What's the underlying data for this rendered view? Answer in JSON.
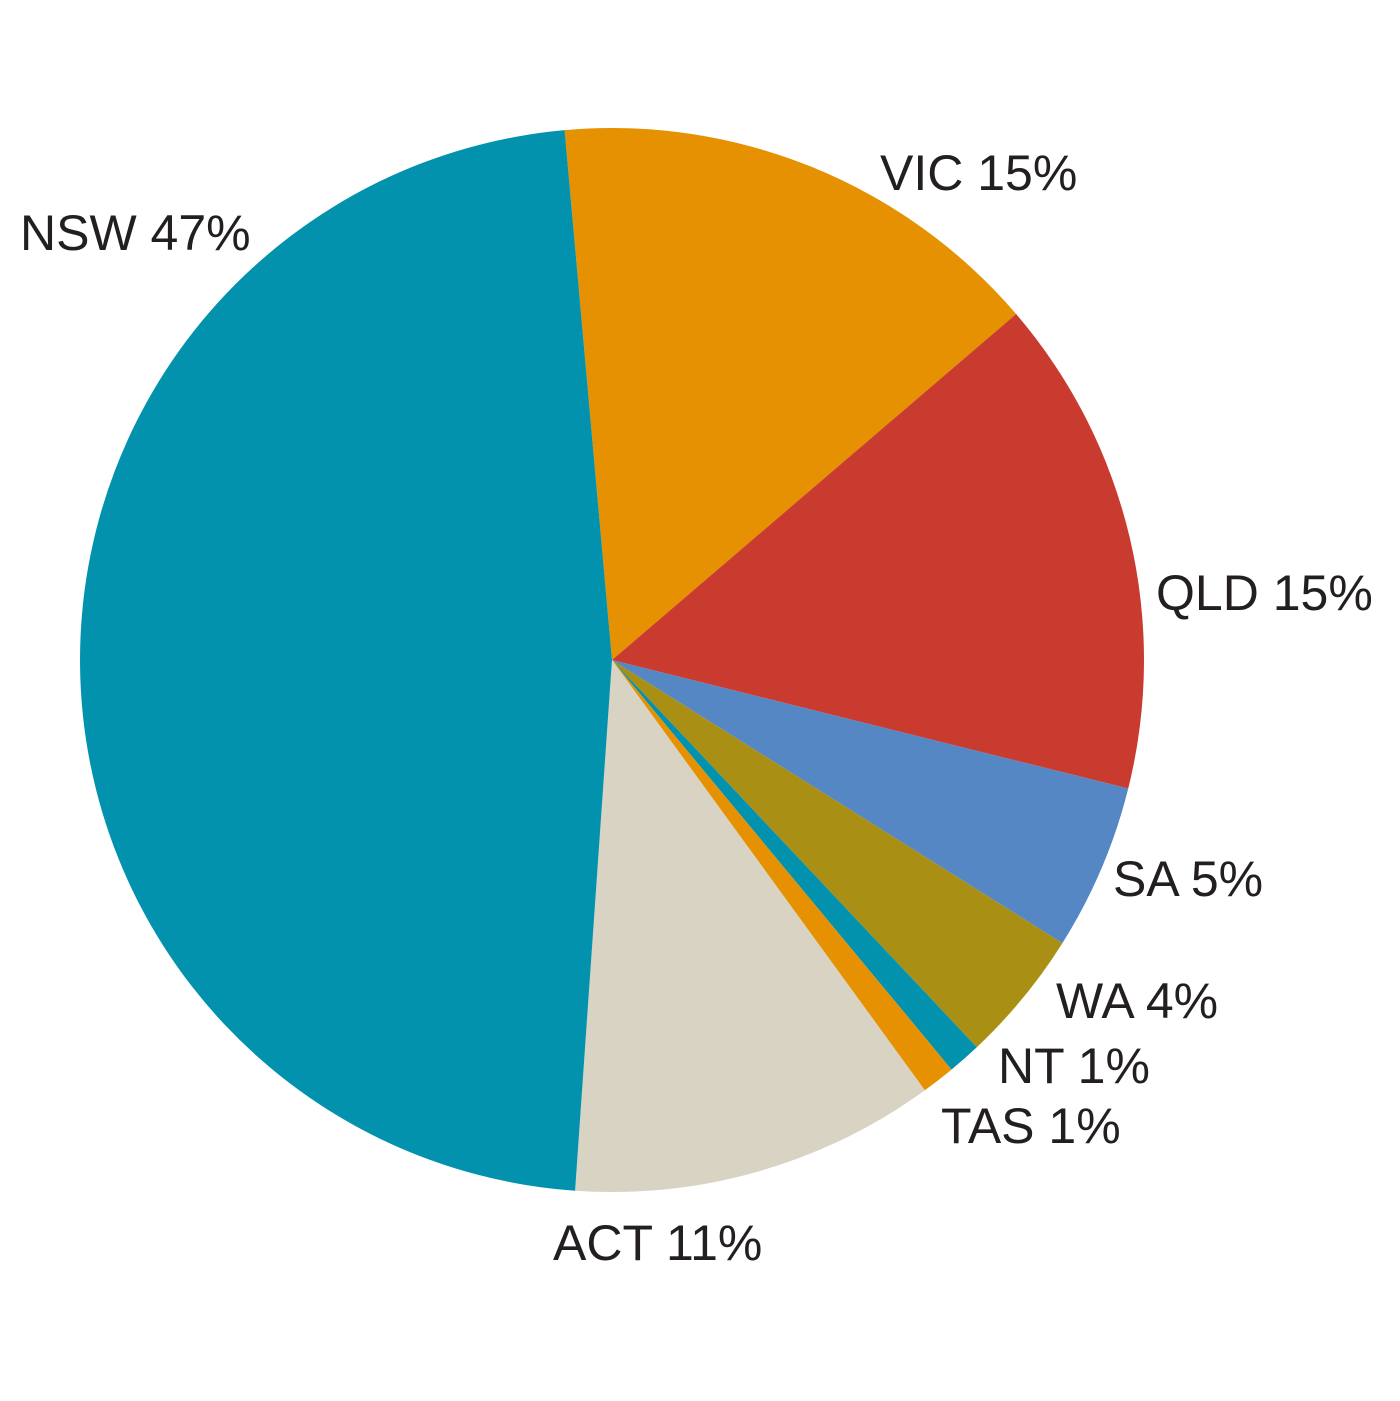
{
  "chart_data": {
    "type": "pie",
    "title": "",
    "slices": [
      {
        "label": "VIC 15%",
        "category": "VIC",
        "value": 15,
        "color": "#e69101"
      },
      {
        "label": "QLD 15%",
        "category": "QLD",
        "value": 15,
        "color": "#c93b2e"
      },
      {
        "label": "SA 5%",
        "category": "SA",
        "value": 5,
        "color": "#5487c4"
      },
      {
        "label": "WA 4%",
        "category": "WA",
        "value": 4,
        "color": "#a98f14"
      },
      {
        "label": "NT 1%",
        "category": "NT",
        "value": 1,
        "color": "#0392ae"
      },
      {
        "label": "TAS 1%",
        "category": "TAS",
        "value": 1,
        "color": "#e69101"
      },
      {
        "label": "ACT 11%",
        "category": "ACT",
        "value": 11,
        "color": "#d9d3c3"
      },
      {
        "label": "NSW 47%",
        "category": "NSW",
        "value": 47,
        "color": "#0392ae"
      }
    ],
    "start": "top",
    "direction": "clockwise",
    "legend": "none (labels beside slices)"
  }
}
